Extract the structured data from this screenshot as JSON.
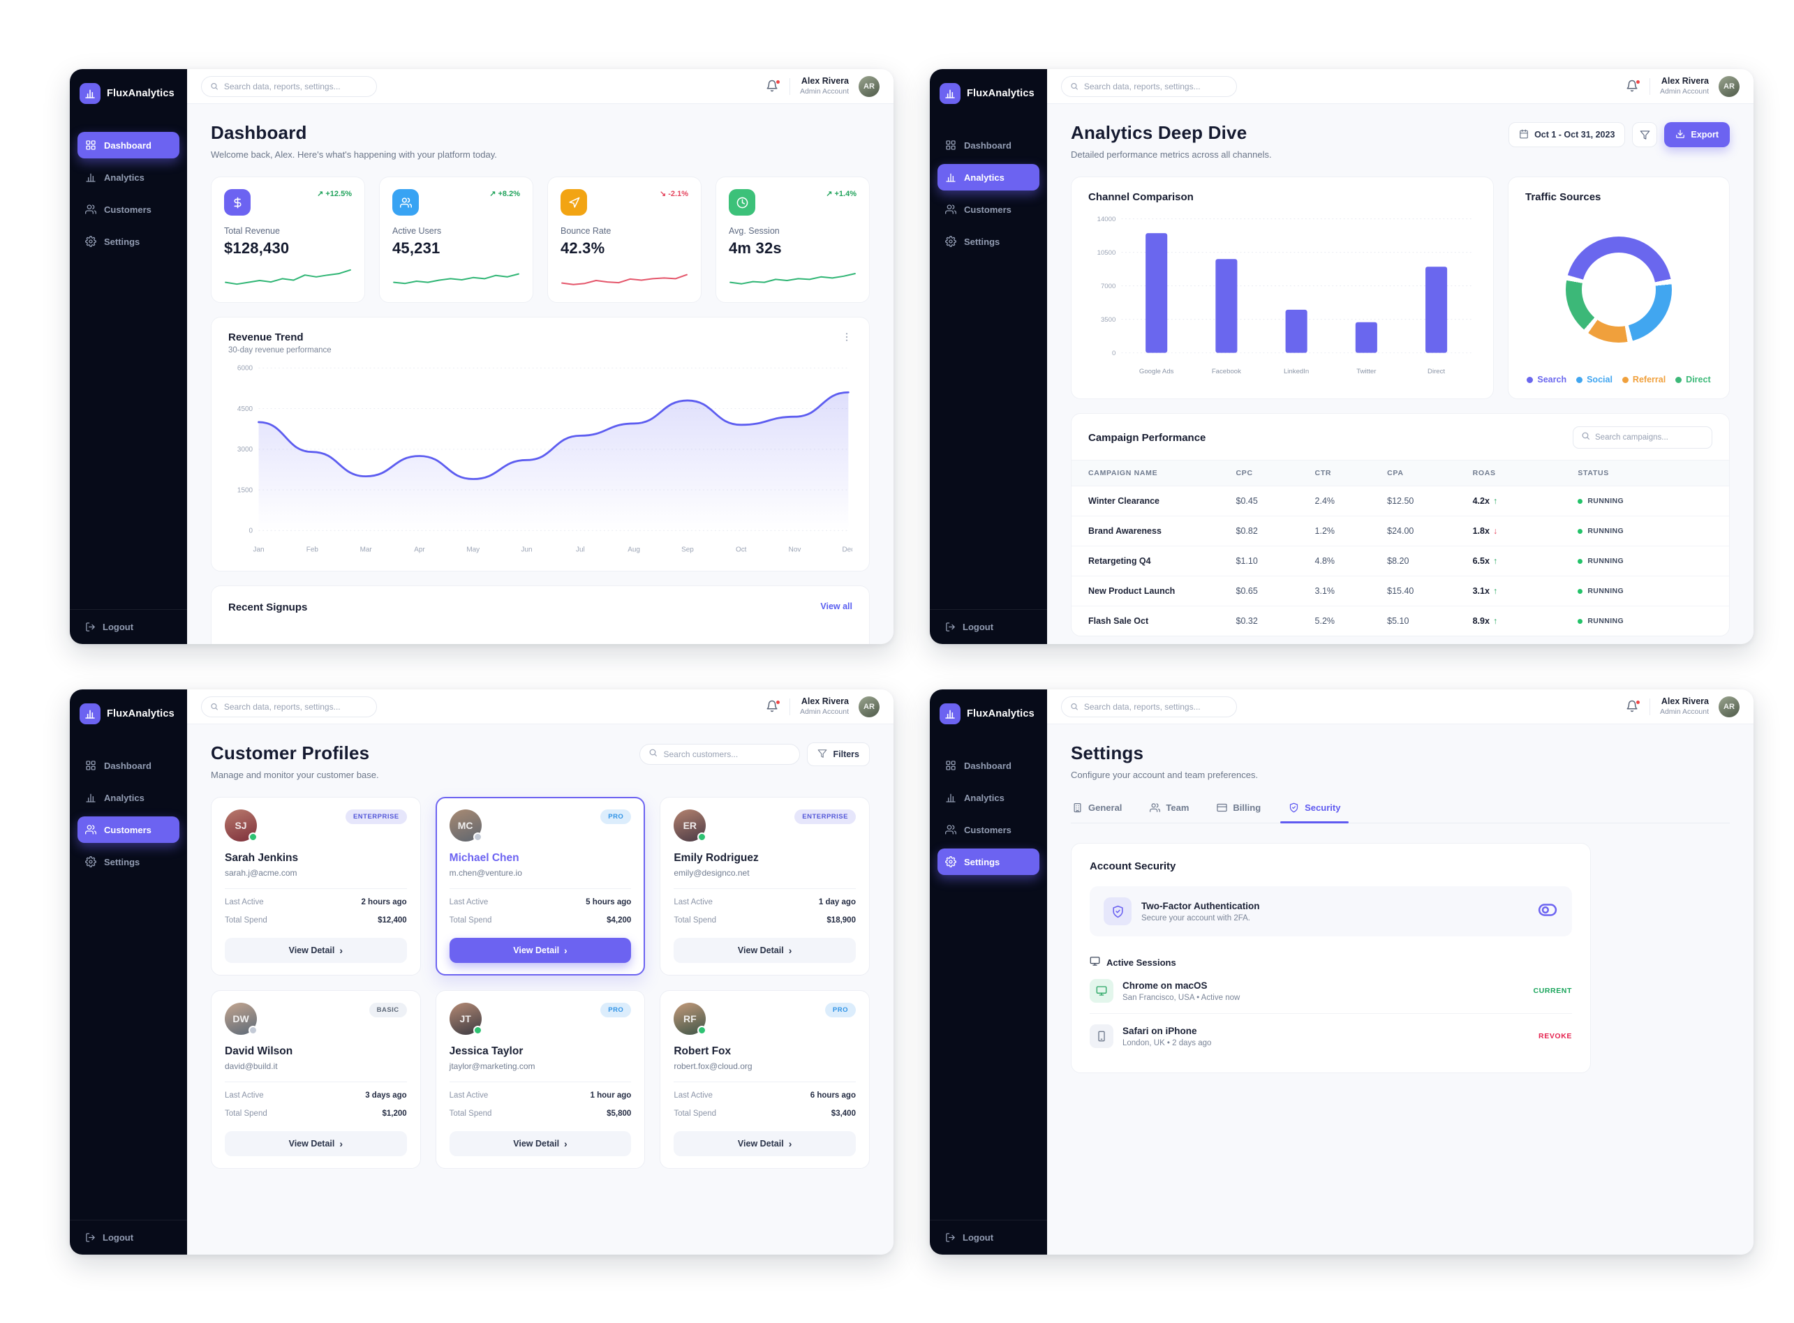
{
  "brand": "FluxAnalytics",
  "topbar": {
    "search_placeholder": "Search data, reports, settings...",
    "user_name": "Alex Rivera",
    "user_role": "Admin Account"
  },
  "nav": [
    {
      "label": "Dashboard",
      "icon": "grid"
    },
    {
      "label": "Analytics",
      "icon": "bars"
    },
    {
      "label": "Customers",
      "icon": "users"
    },
    {
      "label": "Settings",
      "icon": "gear"
    }
  ],
  "logout_label": "Logout",
  "dashboard": {
    "title": "Dashboard",
    "subtitle": "Welcome back, Alex. Here's what's happening with your platform today.",
    "stats": [
      {
        "label": "Total Revenue",
        "value": "$128,430",
        "delta": "+12.5%",
        "direction": "up",
        "trend_color": "#2fb574",
        "icon": "dollar",
        "icon_bg": "#6c63f1"
      },
      {
        "label": "Active Users",
        "value": "45,231",
        "delta": "+8.2%",
        "direction": "up",
        "trend_color": "#2fb574",
        "icon": "users",
        "icon_bg": "#38a3f3"
      },
      {
        "label": "Bounce Rate",
        "value": "42.3%",
        "delta": "-2.1%",
        "direction": "down",
        "trend_color": "#e4556a",
        "icon": "cursor",
        "icon_bg": "#f2a413"
      },
      {
        "label": "Avg. Session",
        "value": "4m 32s",
        "delta": "+1.4%",
        "direction": "up",
        "trend_color": "#2fb574",
        "icon": "clock",
        "icon_bg": "#3cc179"
      }
    ],
    "revenue_subtitle": "30-day revenue performance",
    "signups_title": "Recent Signups",
    "signups_action": "View all"
  },
  "analytics": {
    "title": "Analytics Deep Dive",
    "subtitle": "Detailed performance metrics across all channels.",
    "date_range": "Oct 1 - Oct 31, 2023",
    "export_label": "Export",
    "campaign_title": "Campaign Performance",
    "campaign_search_placeholder": "Search campaigns...",
    "table": {
      "columns": [
        "CAMPAIGN NAME",
        "CPC",
        "CTR",
        "CPA",
        "ROAS",
        "STATUS"
      ],
      "rows": [
        {
          "name": "Winter Clearance",
          "cpc": "$0.45",
          "ctr": "2.4%",
          "cpa": "$12.50",
          "roas": "4.2x",
          "roas_dir": "up",
          "status": "RUNNING"
        },
        {
          "name": "Brand Awareness",
          "cpc": "$0.82",
          "ctr": "1.2%",
          "cpa": "$24.00",
          "roas": "1.8x",
          "roas_dir": "down",
          "status": "RUNNING"
        },
        {
          "name": "Retargeting Q4",
          "cpc": "$1.10",
          "ctr": "4.8%",
          "cpa": "$8.20",
          "roas": "6.5x",
          "roas_dir": "up",
          "status": "RUNNING"
        },
        {
          "name": "New Product Launch",
          "cpc": "$0.65",
          "ctr": "3.1%",
          "cpa": "$15.40",
          "roas": "3.1x",
          "roas_dir": "up",
          "status": "RUNNING"
        },
        {
          "name": "Flash Sale Oct",
          "cpc": "$0.32",
          "ctr": "5.2%",
          "cpa": "$5.10",
          "roas": "8.9x",
          "roas_dir": "up",
          "status": "RUNNING"
        }
      ]
    }
  },
  "customers": {
    "title": "Customer Profiles",
    "subtitle": "Manage and monitor your customer base.",
    "search_placeholder": "Search customers...",
    "filters_label": "Filters",
    "labels": {
      "last_active": "Last Active",
      "total_spend": "Total Spend",
      "view_detail": "View Detail"
    },
    "cards": [
      {
        "name": "Sarah Jenkins",
        "email": "sarah.j@acme.com",
        "tier": "ENTERPRISE",
        "tier_style": "enterprise",
        "last_active": "2 hours ago",
        "total_spend": "$12,400",
        "online": true,
        "selected": false,
        "av1": "#b97a6d",
        "av2": "#7d2f3a"
      },
      {
        "name": "Michael Chen",
        "email": "m.chen@venture.io",
        "tier": "PRO",
        "tier_style": "pro",
        "last_active": "5 hours ago",
        "total_spend": "$4,200",
        "online": false,
        "selected": true,
        "av1": "#a88a72",
        "av2": "#5f6670"
      },
      {
        "name": "Emily Rodriguez",
        "email": "emily@designco.net",
        "tier": "ENTERPRISE",
        "tier_style": "enterprise",
        "last_active": "1 day ago",
        "total_spend": "$18,900",
        "online": true,
        "selected": false,
        "av1": "#b4826f",
        "av2": "#4a3a45"
      },
      {
        "name": "David Wilson",
        "email": "david@build.it",
        "tier": "BASIC",
        "tier_style": "basic",
        "last_active": "3 days ago",
        "total_spend": "$1,200",
        "online": false,
        "selected": false,
        "av1": "#c3a58f",
        "av2": "#5d6a78"
      },
      {
        "name": "Jessica Taylor",
        "email": "jtaylor@marketing.com",
        "tier": "PRO",
        "tier_style": "pro",
        "last_active": "1 hour ago",
        "total_spend": "$5,800",
        "online": true,
        "selected": false,
        "av1": "#b58a74",
        "av2": "#3c3a42"
      },
      {
        "name": "Robert Fox",
        "email": "robert.fox@cloud.org",
        "tier": "PRO",
        "tier_style": "pro",
        "last_active": "6 hours ago",
        "total_spend": "$3,400",
        "online": true,
        "selected": false,
        "av1": "#c49a7a",
        "av2": "#3f5548"
      }
    ]
  },
  "settings": {
    "title": "Settings",
    "subtitle": "Configure your account and team preferences.",
    "tabs": [
      {
        "label": "General",
        "icon": "building",
        "active": false
      },
      {
        "label": "Team",
        "icon": "users",
        "active": false
      },
      {
        "label": "Billing",
        "icon": "card",
        "active": false
      },
      {
        "label": "Security",
        "icon": "shield",
        "active": true
      }
    ],
    "card_title": "Account Security",
    "twofa_title": "Two-Factor Authentication",
    "twofa_sub": "Secure your account with 2FA.",
    "sessions_title": "Active Sessions",
    "sessions": [
      {
        "device": "Chrome on macOS",
        "meta": "San Francisco, USA • Active now",
        "action": "CURRENT",
        "action_style": "green",
        "icon": "monitor",
        "tile": "green"
      },
      {
        "device": "Safari on iPhone",
        "meta": "London, UK • 2 days ago",
        "action": "REVOKE",
        "action_style": "red",
        "icon": "phone",
        "tile": "gray"
      }
    ]
  },
  "chart_data": [
    {
      "id": "revenue_trend",
      "type": "area",
      "title": "Revenue Trend",
      "x": [
        "Jan",
        "Feb",
        "Mar",
        "Apr",
        "May",
        "Jun",
        "Jul",
        "Aug",
        "Sep",
        "Oct",
        "Nov",
        "Dec"
      ],
      "values": [
        4000,
        2900,
        2000,
        2750,
        1900,
        2600,
        3500,
        3950,
        4800,
        3900,
        4200,
        5100
      ],
      "ylim": [
        0,
        6000
      ],
      "yticks": [
        0,
        1500,
        3000,
        4500,
        6000
      ],
      "line_color": "#5d5df0",
      "grid": true,
      "legend_position": "none"
    },
    {
      "id": "channel_comparison",
      "type": "bar",
      "title": "Channel Comparison",
      "categories": [
        "Google Ads",
        "Facebook",
        "LinkedIn",
        "Twitter",
        "Direct"
      ],
      "values": [
        12500,
        9800,
        4500,
        3200,
        9000
      ],
      "ylim": [
        0,
        14000
      ],
      "yticks": [
        0,
        3500,
        7000,
        10500,
        14000
      ],
      "bar_color": "#6a67ee",
      "grid": true,
      "legend_position": "none"
    },
    {
      "id": "traffic_sources",
      "type": "pie",
      "title": "Traffic Sources",
      "slices": [
        {
          "label": "Search",
          "value": 44,
          "color": "#6a67ee"
        },
        {
          "label": "Social",
          "value": 24,
          "color": "#41a6f0"
        },
        {
          "label": "Referral",
          "value": 14,
          "color": "#f0a03c"
        },
        {
          "label": "Direct",
          "value": 18,
          "color": "#3cb878"
        }
      ],
      "legend_position": "bottom"
    },
    {
      "id": "stat_sparklines",
      "type": "line",
      "title": "Stat card sparklines",
      "series": [
        {
          "name": "Total Revenue",
          "values": [
            2.0,
            1.5,
            2.0,
            2.5,
            2.1,
            3.0,
            2.6,
            4.0,
            3.5,
            4.0,
            4.4,
            5.4
          ]
        },
        {
          "name": "Active Users",
          "values": [
            2.0,
            1.7,
            2.3,
            2.0,
            2.6,
            3.0,
            2.7,
            3.3,
            3.0,
            3.9,
            3.5,
            4.3
          ]
        },
        {
          "name": "Bounce Rate",
          "values": [
            1.8,
            1.4,
            1.7,
            2.5,
            2.1,
            1.9,
            2.9,
            2.6,
            3.0,
            3.2,
            3.0,
            4.1
          ]
        },
        {
          "name": "Avg. Session",
          "values": [
            2.0,
            1.6,
            2.2,
            2.0,
            2.8,
            2.5,
            3.0,
            2.8,
            3.5,
            3.2,
            3.7,
            4.4
          ]
        }
      ]
    }
  ]
}
